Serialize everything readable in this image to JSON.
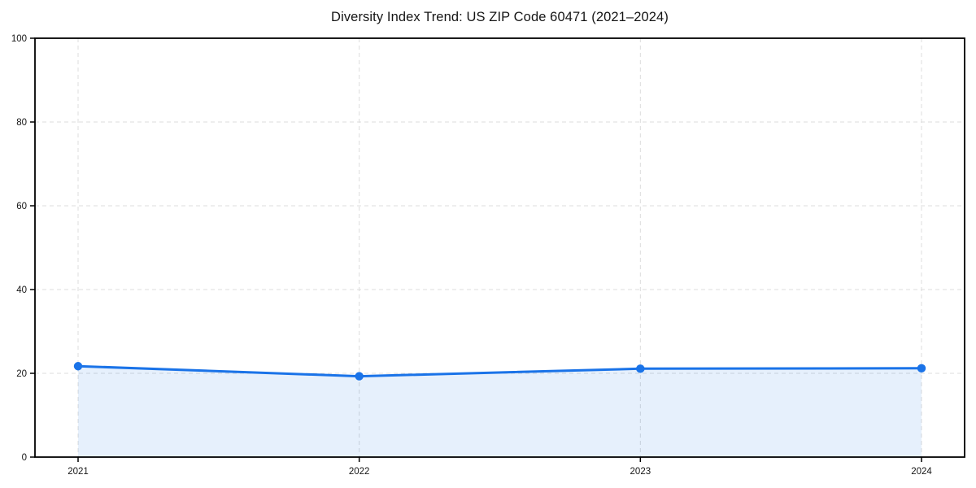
{
  "chart_data": {
    "type": "area",
    "title": "Diversity Index Trend: US ZIP Code 60471 (2021–2024)",
    "categories": [
      "2021",
      "2022",
      "2023",
      "2024"
    ],
    "series": [
      {
        "name": "Diversity Index",
        "values": [
          21.7,
          19.3,
          21.1,
          21.2
        ]
      }
    ],
    "xlabel": "",
    "ylabel": "",
    "ylim": [
      0,
      100
    ],
    "yticks": [
      0,
      20,
      40,
      60,
      80,
      100
    ],
    "grid": "dashed-both-axes",
    "legend_position": "none",
    "colors": {
      "line": "#1a73e8",
      "marker": "#1a73e8",
      "fill": "#1a73e8",
      "fill_opacity": 0.11,
      "grid": "#dcdcdc",
      "spine": "#000000",
      "tick_text": "#151515",
      "background": "#ffffff"
    }
  }
}
